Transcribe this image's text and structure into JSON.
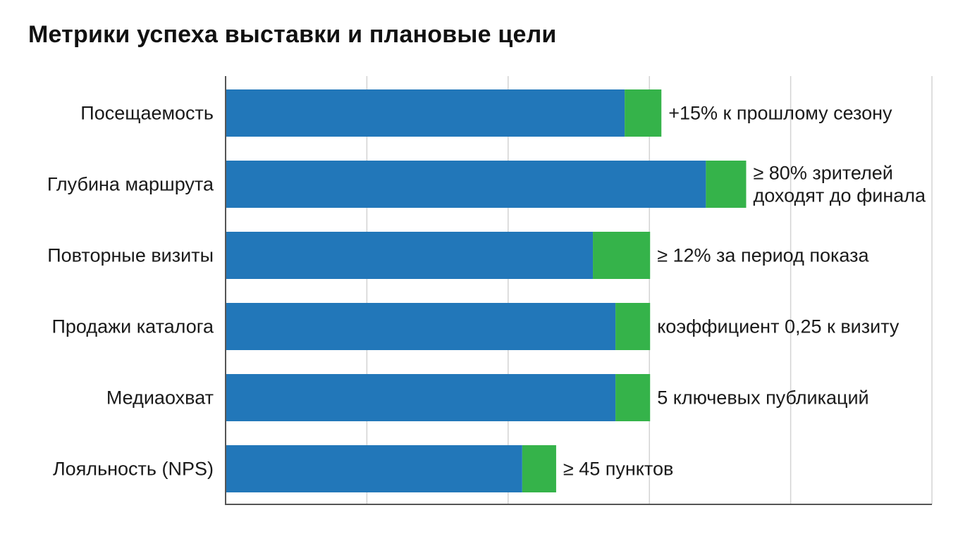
{
  "chart_data": {
    "type": "bar",
    "orientation": "horizontal",
    "stacked": true,
    "title": "Метрики успеха выставки и плановые цели",
    "categories": [
      "Посещаемость",
      "Глубина маршрута",
      "Повторные визиты",
      "Продажи каталога",
      "Медиаохват",
      "Лояльность (NPS)"
    ],
    "series": [
      {
        "values": [
          56.5,
          68,
          52,
          55.2,
          55.2,
          42
        ],
        "color": "#2277b9"
      },
      {
        "values": [
          5.2,
          5.7,
          8.1,
          4.9,
          4.9,
          4.8
        ],
        "color": "#35b34a"
      }
    ],
    "annotations": [
      [
        "+15% к прошлому сезону"
      ],
      [
        "≥ 80% зрителей",
        "доходят до финала"
      ],
      [
        "≥ 12% за период показа"
      ],
      [
        "коэффициент 0,25 к визиту"
      ],
      [
        "5 ключевых публикаций"
      ],
      [
        "≥ 45 пунктов"
      ]
    ],
    "xlim": [
      0,
      100
    ],
    "grid": true,
    "gridline_step": 20,
    "gridline_color": "#d3d3d3",
    "axis_color": "#555555",
    "xlabel": "",
    "ylabel": "",
    "legend": "none"
  }
}
